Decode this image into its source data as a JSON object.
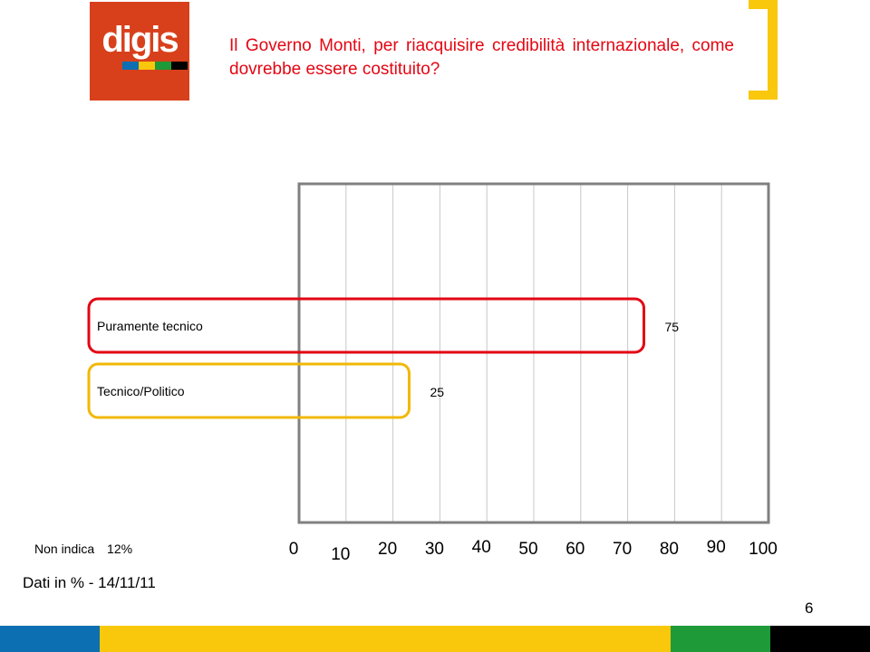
{
  "header": {
    "logo_text": "digis",
    "title": "Il Governo Monti, per riacquisire credibilità internazionale, come dovrebbe essere costituito?"
  },
  "colors": {
    "logo_bg": "#d8401c",
    "title_red": "#e30613",
    "accent_yellow": "#f9c70c",
    "stripe_blue": "#0b6fb2",
    "stripe_green": "#1f9a38",
    "stripe_black": "#000000",
    "highlight_red": "#e30613",
    "highlight_yellow": "#f2b807"
  },
  "chart_data": {
    "type": "bar",
    "orientation": "horizontal",
    "categories": [
      "Puramente tecnico",
      "Tecnico/Politico"
    ],
    "values": [
      75,
      25
    ],
    "value_labels": [
      "75",
      "25"
    ],
    "xlim": [
      0,
      100
    ],
    "x_ticks": [
      "0",
      "10",
      "20",
      "30",
      "40",
      "50",
      "60",
      "70",
      "80",
      "90",
      "100"
    ],
    "grid": "vertical",
    "title": ""
  },
  "notes": {
    "non_indica_label": "Non indica",
    "non_indica_value": "12%"
  },
  "footer": {
    "source": "Dati in % - 14/11/11",
    "page_number": "6"
  }
}
